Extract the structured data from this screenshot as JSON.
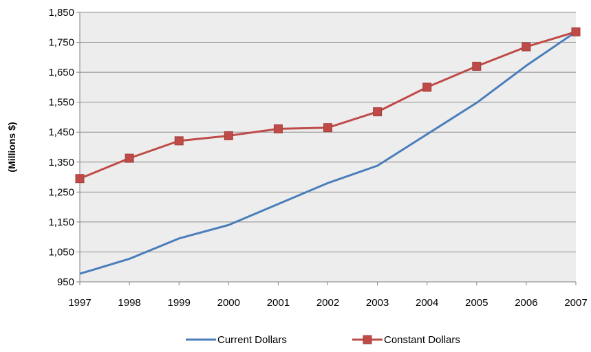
{
  "chart_data": {
    "type": "line",
    "title": "",
    "xlabel": "",
    "ylabel": "(Millions $)",
    "x": [
      "1997",
      "1998",
      "1999",
      "2000",
      "2001",
      "2002",
      "2003",
      "2004",
      "2005",
      "2006",
      "2007"
    ],
    "ylim": [
      950,
      1850
    ],
    "yticks": [
      "950",
      "1,050",
      "1,150",
      "1,250",
      "1,350",
      "1,450",
      "1,550",
      "1,650",
      "1,750",
      "1,850"
    ],
    "grid": true,
    "legend": "bottom",
    "series": [
      {
        "name": "Current Dollars",
        "color": "#4A7EBB",
        "marker": "none",
        "values": [
          977,
          1027,
          1095,
          1140,
          1210,
          1280,
          1338,
          1443,
          1548,
          1672,
          1785
        ]
      },
      {
        "name": "Constant Dollars",
        "color": "#BE4B48",
        "marker": "square",
        "values": [
          1295,
          1363,
          1421,
          1438,
          1461,
          1465,
          1518,
          1600,
          1670,
          1735,
          1785
        ]
      }
    ]
  }
}
